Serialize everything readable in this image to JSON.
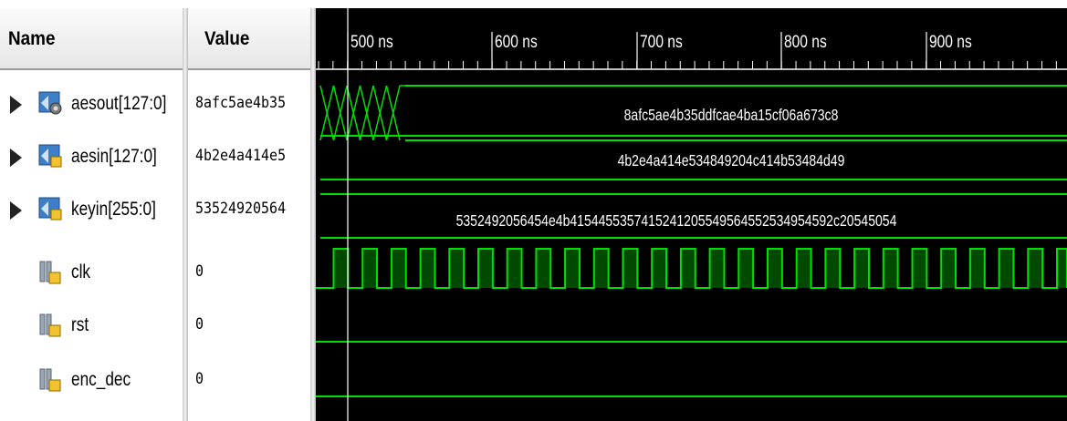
{
  "headers": {
    "name": "Name",
    "value": "Value"
  },
  "time_ticks": [
    "500 ns",
    "600 ns",
    "700 ns",
    "800 ns",
    "900 ns"
  ],
  "signals": [
    {
      "name": "aesout[127:0]",
      "value": "8afc5ae4b35",
      "kind": "bus",
      "expandable": true,
      "wave_label": "8afc5ae4b35ddfcae4ba15cf06a673c8"
    },
    {
      "name": "aesin[127:0]",
      "value": "4b2e4a414e5",
      "kind": "bus",
      "expandable": true,
      "wave_label": "4b2e4a414e534849204c414b53484d49"
    },
    {
      "name": "keyin[255:0]",
      "value": "53524920564",
      "kind": "bus",
      "expandable": true,
      "wave_label": "5352492056454e4b4154455357415241205549564552534954592c20545054"
    },
    {
      "name": "clk",
      "value": "0",
      "kind": "bit",
      "expandable": false
    },
    {
      "name": "rst",
      "value": "0",
      "kind": "bit",
      "expandable": false
    },
    {
      "name": "enc_dec",
      "value": "0",
      "kind": "bit",
      "expandable": false
    }
  ],
  "colors": {
    "wave": "#00e000",
    "wave_fill": "#004a00",
    "background": "#000000",
    "cursor": "#ffffff"
  }
}
